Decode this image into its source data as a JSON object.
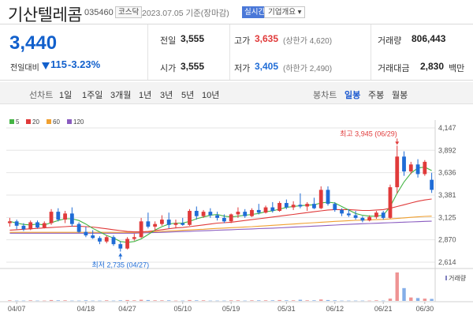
{
  "header": {
    "title": "기산텔레콤",
    "code": "035460",
    "market": "코스닥",
    "date": "2023.07.05",
    "basis": "기준(장마감)",
    "live": "실시간",
    "overview": "기업개요"
  },
  "quote": {
    "price": "3,440",
    "change_label": "전일대비",
    "change": "115",
    "change_pct": "-3.23%",
    "prev_label": "전일",
    "prev": "3,555",
    "open_label": "시가",
    "open": "3,555",
    "high_label": "고가",
    "high": "3,635",
    "upper_limit": "(상한가 4,620)",
    "low_label": "저가",
    "low": "3,405",
    "lower_limit": "(하한가 2,490)",
    "volume_label": "거래량",
    "volume": "806,443",
    "amount_label": "거래대금",
    "amount": "2,830",
    "amount_unit": "백만"
  },
  "rangebar": {
    "label": "선차트",
    "periods": [
      "1일",
      "1주일",
      "3개월",
      "1년",
      "3년",
      "5년",
      "10년"
    ],
    "candle_label": "봉차트",
    "candle_types": [
      "일봉",
      "주봉",
      "월봉"
    ],
    "active_candle": "일봉"
  },
  "colors": {
    "up": "#e03a3a",
    "down": "#1f6cd6",
    "ma5": "#44b444",
    "ma20": "#e03a3a",
    "ma60": "#f0a030",
    "ma120": "#8a5cc0"
  },
  "chart_data": {
    "type": "candlestick",
    "legend": [
      "5",
      "20",
      "60",
      "120"
    ],
    "y_ticks": [
      4147,
      3892,
      3636,
      3381,
      3125,
      2870,
      2614
    ],
    "y_tick_labels": [
      "4,147",
      "3,892",
      "3,636",
      "3,381",
      "3,125",
      "2,870",
      "2,614"
    ],
    "ylim": [
      2614,
      4147
    ],
    "x_labels": [
      "04/07",
      "04/18",
      "04/27",
      "05/10",
      "05/19",
      "05/31",
      "06/12",
      "06/21",
      "06/30"
    ],
    "high_annotation": "최고 3,945 (06/29)",
    "low_annotation": "최저 2,735 (04/27)",
    "volume_label": "거래량",
    "candles": [
      [
        3060,
        3120,
        3020,
        3080
      ],
      [
        3080,
        3100,
        2990,
        3030
      ],
      [
        3030,
        3060,
        2970,
        2990
      ],
      [
        2990,
        3090,
        2980,
        3070
      ],
      [
        3070,
        3090,
        3000,
        3010
      ],
      [
        3010,
        3080,
        3000,
        3060
      ],
      [
        3060,
        3220,
        3040,
        3190
      ],
      [
        3190,
        3230,
        3080,
        3100
      ],
      [
        3100,
        3200,
        3060,
        3170
      ],
      [
        3170,
        3240,
        3020,
        3050
      ],
      [
        3050,
        3070,
        2950,
        2960
      ],
      [
        2960,
        3020,
        2900,
        2920
      ],
      [
        2920,
        2980,
        2880,
        2890
      ],
      [
        2890,
        2910,
        2820,
        2850
      ],
      [
        2850,
        2920,
        2830,
        2900
      ],
      [
        2900,
        2920,
        2800,
        2820
      ],
      [
        2820,
        2850,
        2735,
        2770
      ],
      [
        2770,
        2900,
        2760,
        2880
      ],
      [
        2880,
        2940,
        2860,
        2900
      ],
      [
        2900,
        3120,
        2890,
        3080
      ],
      [
        3080,
        3180,
        3000,
        3020
      ],
      [
        3020,
        3080,
        2970,
        3050
      ],
      [
        3050,
        3150,
        3030,
        3100
      ],
      [
        3100,
        3180,
        3000,
        3040
      ],
      [
        3040,
        3100,
        3000,
        3060
      ],
      [
        3060,
        3120,
        3030,
        3040
      ],
      [
        3040,
        3220,
        3030,
        3200
      ],
      [
        3200,
        3250,
        3100,
        3140
      ],
      [
        3140,
        3210,
        3120,
        3190
      ],
      [
        3190,
        3230,
        3120,
        3150
      ],
      [
        3150,
        3190,
        3090,
        3120
      ],
      [
        3120,
        3160,
        3060,
        3080
      ],
      [
        3080,
        3170,
        3060,
        3160
      ],
      [
        3160,
        3240,
        3120,
        3190
      ],
      [
        3190,
        3220,
        3120,
        3140
      ],
      [
        3140,
        3230,
        3130,
        3210
      ],
      [
        3210,
        3280,
        3160,
        3180
      ],
      [
        3180,
        3260,
        3170,
        3240
      ],
      [
        3240,
        3300,
        3180,
        3200
      ],
      [
        3200,
        3310,
        3190,
        3290
      ],
      [
        3290,
        3330,
        3220,
        3240
      ],
      [
        3240,
        3310,
        3210,
        3270
      ],
      [
        3270,
        3400,
        3230,
        3250
      ],
      [
        3250,
        3300,
        3200,
        3280
      ],
      [
        3280,
        3350,
        3220,
        3230
      ],
      [
        3230,
        3480,
        3220,
        3440
      ],
      [
        3440,
        3480,
        3260,
        3280
      ],
      [
        3280,
        3300,
        3190,
        3210
      ],
      [
        3210,
        3230,
        3140,
        3170
      ],
      [
        3170,
        3220,
        3130,
        3150
      ],
      [
        3150,
        3200,
        3100,
        3120
      ],
      [
        3120,
        3140,
        3070,
        3090
      ],
      [
        3090,
        3150,
        3080,
        3130
      ],
      [
        3130,
        3200,
        3110,
        3180
      ],
      [
        3180,
        3200,
        3100,
        3120
      ],
      [
        3120,
        3500,
        3110,
        3470
      ],
      [
        3470,
        3945,
        3400,
        3820
      ],
      [
        3820,
        3880,
        3600,
        3650
      ],
      [
        3650,
        3760,
        3620,
        3730
      ],
      [
        3730,
        3790,
        3580,
        3620
      ],
      [
        3620,
        3780,
        3600,
        3760
      ],
      [
        3555,
        3635,
        3405,
        3440
      ]
    ],
    "ma5": [
      3080,
      3060,
      3045,
      3040,
      3050,
      3040,
      3065,
      3090,
      3110,
      3110,
      3090,
      3050,
      3000,
      2960,
      2920,
      2890,
      2850,
      2840,
      2850,
      2880,
      2930,
      2980,
      3020,
      3050,
      3060,
      3060,
      3080,
      3110,
      3130,
      3150,
      3160,
      3140,
      3130,
      3140,
      3150,
      3160,
      3170,
      3190,
      3200,
      3220,
      3240,
      3250,
      3260,
      3265,
      3270,
      3290,
      3300,
      3290,
      3250,
      3210,
      3170,
      3150,
      3140,
      3140,
      3150,
      3250,
      3400,
      3530,
      3630,
      3690,
      3700,
      3660
    ],
    "ma20": [
      2980,
      2985,
      2990,
      2995,
      3000,
      3005,
      3010,
      3015,
      3020,
      3025,
      3025,
      3020,
      3015,
      3005,
      2995,
      2985,
      2975,
      2965,
      2960,
      2960,
      2965,
      2975,
      2985,
      2995,
      3005,
      3010,
      3020,
      3030,
      3040,
      3050,
      3060,
      3065,
      3070,
      3080,
      3090,
      3100,
      3110,
      3120,
      3130,
      3140,
      3150,
      3160,
      3170,
      3180,
      3190,
      3200,
      3210,
      3215,
      3215,
      3215,
      3210,
      3205,
      3205,
      3210,
      3215,
      3230,
      3250,
      3270,
      3290,
      3310,
      3325,
      3335
    ],
    "ma60": [
      2955,
      2955,
      2955,
      2955,
      2955,
      2955,
      2955,
      2955,
      2955,
      2955,
      2955,
      2955,
      2955,
      2955,
      2955,
      2955,
      2955,
      2955,
      2955,
      2958,
      2960,
      2963,
      2966,
      2970,
      2974,
      2978,
      2982,
      2986,
      2990,
      2995,
      3000,
      3004,
      3008,
      3012,
      3016,
      3020,
      3025,
      3030,
      3035,
      3040,
      3045,
      3050,
      3055,
      3060,
      3065,
      3070,
      3075,
      3080,
      3084,
      3088,
      3092,
      3095,
      3098,
      3100,
      3103,
      3108,
      3114,
      3120,
      3126,
      3132,
      3137,
      3140
    ],
    "ma120": [
      2945,
      2945,
      2945,
      2945,
      2945,
      2945,
      2945,
      2945,
      2945,
      2945,
      2945,
      2945,
      2945,
      2945,
      2945,
      2945,
      2945,
      2945,
      2945,
      2948,
      2950,
      2953,
      2955,
      2958,
      2961,
      2964,
      2967,
      2970,
      2973,
      2976,
      2979,
      2982,
      2985,
      2988,
      2991,
      2994,
      2997,
      3000,
      3003,
      3006,
      3010,
      3014,
      3018,
      3022,
      3026,
      3030,
      3034,
      3038,
      3042,
      3046,
      3050,
      3053,
      3056,
      3059,
      3062,
      3065,
      3068,
      3071,
      3074,
      3077,
      3080,
      3082
    ],
    "volume": [
      0.02,
      0.01,
      0.01,
      0.02,
      0.01,
      0.01,
      0.03,
      0.02,
      0.02,
      0.01,
      0.01,
      0.02,
      0.01,
      0.01,
      0.02,
      0.01,
      0.02,
      0.03,
      0.02,
      0.04,
      0.03,
      0.02,
      0.02,
      0.02,
      0.01,
      0.01,
      0.03,
      0.02,
      0.02,
      0.01,
      0.01,
      0.01,
      0.02,
      0.02,
      0.01,
      0.02,
      0.02,
      0.02,
      0.02,
      0.03,
      0.02,
      0.02,
      0.04,
      0.02,
      0.02,
      0.05,
      0.03,
      0.02,
      0.01,
      0.01,
      0.01,
      0.01,
      0.01,
      0.02,
      0.01,
      0.08,
      1.0,
      0.45,
      0.12,
      0.1,
      0.08,
      0.07
    ]
  }
}
